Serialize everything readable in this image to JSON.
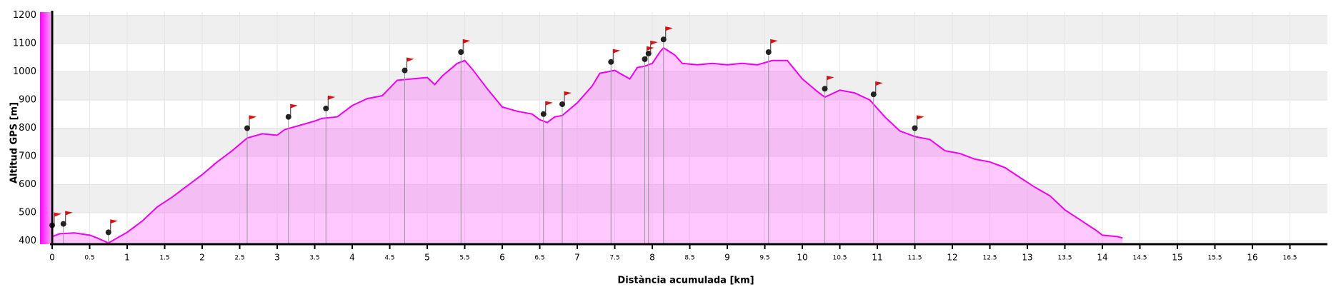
{
  "chart_data": {
    "type": "area",
    "y_label": "Altitud GPS [m]",
    "x_label": "Distància acumulada [km]",
    "color": "#ee00ee",
    "x": [
      0,
      0.1,
      0.3,
      0.5,
      0.6,
      0.75,
      0.9,
      1.0,
      1.2,
      1.4,
      1.6,
      1.8,
      2.0,
      2.2,
      2.4,
      2.6,
      2.8,
      3.0,
      3.1,
      3.3,
      3.5,
      3.6,
      3.8,
      4.0,
      4.2,
      4.4,
      4.6,
      4.8,
      5.0,
      5.1,
      5.2,
      5.4,
      5.5,
      5.6,
      5.8,
      6.0,
      6.2,
      6.4,
      6.5,
      6.6,
      6.7,
      6.8,
      7.0,
      7.2,
      7.3,
      7.5,
      7.7,
      7.8,
      7.9,
      8.0,
      8.1,
      8.15,
      8.3,
      8.4,
      8.6,
      8.8,
      9.0,
      9.2,
      9.4,
      9.6,
      9.8,
      10.0,
      10.2,
      10.3,
      10.5,
      10.7,
      10.9,
      11.1,
      11.3,
      11.5,
      11.7,
      11.9,
      12.1,
      12.3,
      12.5,
      12.7,
      12.9,
      13.1,
      13.3,
      13.5,
      13.7,
      13.9,
      14.0,
      14.2,
      14.27
    ],
    "values": [
      415,
      425,
      428,
      420,
      410,
      392,
      415,
      430,
      470,
      520,
      555,
      595,
      635,
      680,
      720,
      765,
      780,
      775,
      795,
      810,
      825,
      835,
      840,
      880,
      905,
      915,
      970,
      975,
      980,
      955,
      985,
      1030,
      1040,
      1010,
      940,
      875,
      860,
      850,
      830,
      820,
      840,
      845,
      890,
      950,
      995,
      1005,
      975,
      1015,
      1020,
      1030,
      1070,
      1085,
      1060,
      1030,
      1025,
      1030,
      1025,
      1030,
      1025,
      1040,
      1040,
      975,
      930,
      910,
      935,
      925,
      900,
      840,
      790,
      770,
      760,
      720,
      710,
      690,
      680,
      660,
      625,
      590,
      560,
      510,
      475,
      440,
      420,
      415,
      410
    ],
    "waypoints": {
      "x": [
        0.0,
        0.15,
        0.75,
        2.6,
        3.15,
        3.65,
        4.7,
        5.45,
        6.55,
        6.8,
        7.45,
        7.9,
        7.95,
        8.15,
        9.55,
        10.3,
        10.95,
        11.5
      ],
      "values": [
        455,
        460,
        430,
        800,
        840,
        870,
        1005,
        1070,
        850,
        885,
        1035,
        1045,
        1065,
        1115,
        1070,
        940,
        920,
        800
      ]
    },
    "xlim": [
      0,
      17
    ],
    "ylim": [
      388,
      1212
    ],
    "xticks": [
      0,
      0.5,
      1,
      1.5,
      2,
      2.5,
      3,
      3.5,
      4,
      4.5,
      5,
      5.5,
      6,
      6.5,
      7,
      7.5,
      8,
      8.5,
      9,
      9.5,
      10,
      10.5,
      11,
      11.5,
      12,
      12.5,
      13,
      13.5,
      14,
      14.5,
      15,
      15.5,
      16,
      16.5
    ],
    "yticks": [
      400,
      500,
      600,
      700,
      800,
      900,
      1000,
      1100,
      1200
    ],
    "grid": true
  }
}
